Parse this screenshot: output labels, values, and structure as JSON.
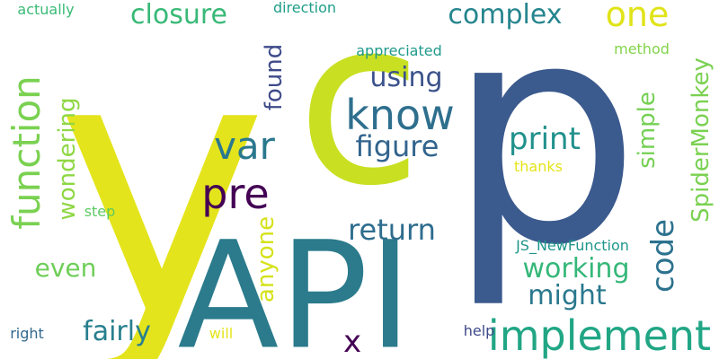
{
  "words": [
    {
      "text": "y",
      "color": "#e4e41c",
      "rotate": false
    },
    {
      "text": "p",
      "color": "#3b5a8e",
      "rotate": false
    },
    {
      "text": "c",
      "color": "#c8e021",
      "rotate": false
    },
    {
      "text": "API",
      "color": "#2b7b8c",
      "rotate": false
    },
    {
      "text": "know",
      "color": "#2e6f8e",
      "rotate": false
    },
    {
      "text": "implement",
      "color": "#21a685",
      "rotate": false
    },
    {
      "text": "function",
      "color": "#7ad151",
      "rotate": true
    },
    {
      "text": "pre",
      "color": "#440154",
      "rotate": false
    },
    {
      "text": "var",
      "color": "#2a788e",
      "rotate": false
    },
    {
      "text": "one",
      "color": "#e0e318",
      "rotate": false
    },
    {
      "text": "code",
      "color": "#2c728e",
      "rotate": true
    },
    {
      "text": "return",
      "color": "#2e6d8e",
      "rotate": false
    },
    {
      "text": "figure",
      "color": "#32648e",
      "rotate": false
    },
    {
      "text": "print",
      "color": "#21918c",
      "rotate": false
    },
    {
      "text": "using",
      "color": "#3b528b",
      "rotate": false
    },
    {
      "text": "complex",
      "color": "#25858e",
      "rotate": false
    },
    {
      "text": "closure",
      "color": "#38b977",
      "rotate": false
    },
    {
      "text": "working",
      "color": "#35b779",
      "rotate": false
    },
    {
      "text": "might",
      "color": "#2a788e",
      "rotate": false
    },
    {
      "text": "fairly",
      "color": "#277f8e",
      "rotate": false
    },
    {
      "text": "even",
      "color": "#6ece58",
      "rotate": false
    },
    {
      "text": "x",
      "color": "#440154",
      "rotate": false
    },
    {
      "text": "found",
      "color": "#3e4a89",
      "rotate": true
    },
    {
      "text": "anyone",
      "color": "#d5e21a",
      "rotate": true
    },
    {
      "text": "wondering",
      "color": "#8fd744",
      "rotate": true
    },
    {
      "text": "simple",
      "color": "#75d054",
      "rotate": true
    },
    {
      "text": "SpiderMonkey",
      "color": "#7ad151",
      "rotate": true
    },
    {
      "text": "actually",
      "color": "#3aba76",
      "rotate": false
    },
    {
      "text": "direction",
      "color": "#1f9e89",
      "rotate": false
    },
    {
      "text": "appreciated",
      "color": "#1f9a8a",
      "rotate": false
    },
    {
      "text": "method",
      "color": "#84d44b",
      "rotate": false
    },
    {
      "text": "thanks",
      "color": "#e5e419",
      "rotate": false
    },
    {
      "text": "step",
      "color": "#5ec962",
      "rotate": false
    },
    {
      "text": "JS_NewFunction",
      "color": "#1f968b",
      "rotate": false
    },
    {
      "text": "right",
      "color": "#31688e",
      "rotate": false
    },
    {
      "text": "will",
      "color": "#e5e419",
      "rotate": false
    },
    {
      "text": "help",
      "color": "#3e4989",
      "rotate": false
    }
  ]
}
